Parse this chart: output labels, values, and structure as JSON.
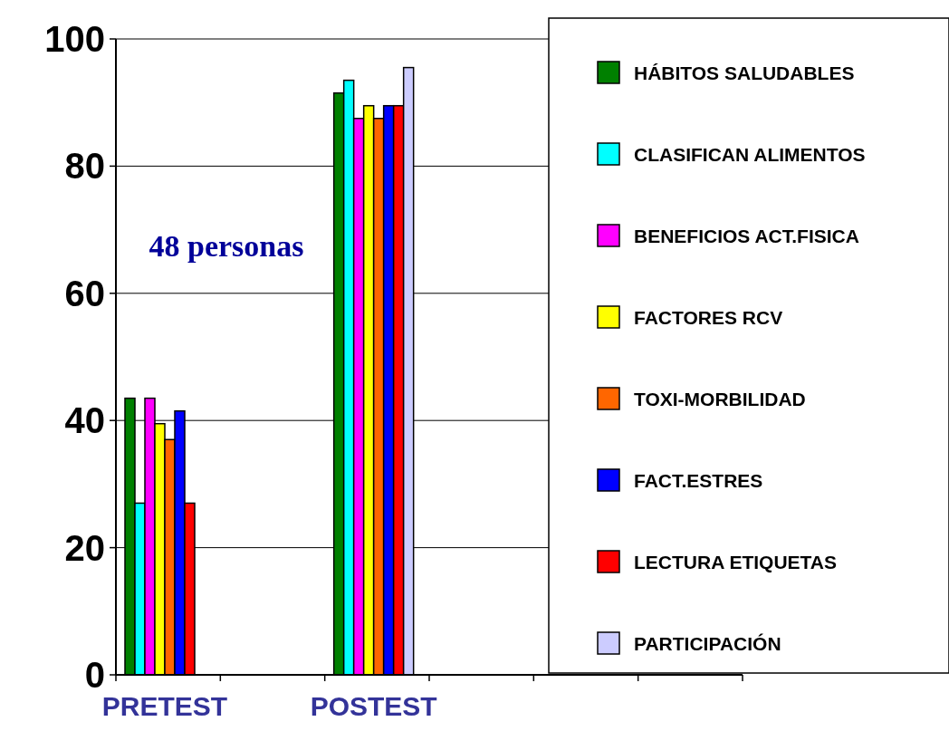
{
  "chart_data": {
    "type": "bar",
    "categories": [
      "PRETEST",
      "POSTEST",
      null
    ],
    "series": [
      {
        "name": "HÁBITOS SALUDABLES",
        "color": "#008000",
        "values": [
          43.5,
          91.5,
          null
        ]
      },
      {
        "name": "CLASIFICAN ALIMENTOS",
        "color": "#00ffff",
        "values": [
          27,
          93.5,
          null
        ]
      },
      {
        "name": "BENEFICIOS ACT.FISICA",
        "color": "#ff00ff",
        "values": [
          43.5,
          87.5,
          null
        ]
      },
      {
        "name": "FACTORES RCV",
        "color": "#ffff00",
        "values": [
          39.5,
          89.5,
          null
        ]
      },
      {
        "name": "TOXI-MORBILIDAD",
        "color": "#ff6600",
        "values": [
          37,
          87.5,
          null
        ]
      },
      {
        "name": "FACT.ESTRES",
        "color": "#0000ff",
        "values": [
          41.5,
          89.5,
          null
        ]
      },
      {
        "name": "LECTURA ETIQUETAS",
        "color": "#ff0000",
        "values": [
          27,
          89.5,
          null
        ]
      },
      {
        "name": "PARTICIPACIÓN",
        "color": "#ccccff",
        "values": [
          null,
          95.5,
          null
        ]
      }
    ],
    "ylim": [
      0,
      100
    ],
    "yticks": [
      0,
      20,
      40,
      60,
      80,
      100
    ],
    "grid": "y",
    "legend": "right",
    "annotations": [
      {
        "text": "48 personas"
      }
    ]
  }
}
